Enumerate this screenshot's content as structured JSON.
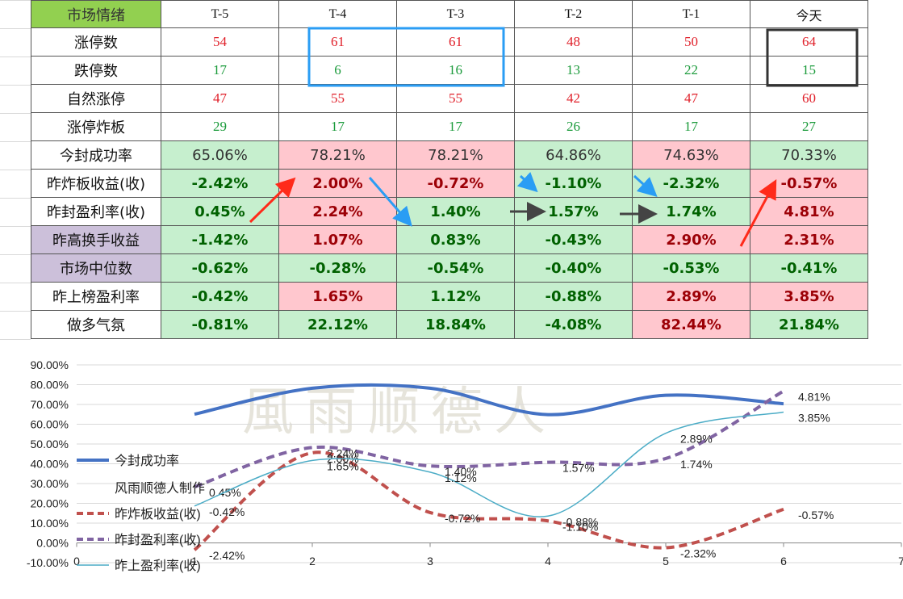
{
  "table": {
    "header": {
      "cells": [
        "市场情绪",
        "T-5",
        "T-4",
        "T-3",
        "T-2",
        "T-1",
        "今天"
      ],
      "label_fill": "#92d050"
    },
    "rows": [
      {
        "cells": [
          "涨停数",
          "54",
          "61",
          "61",
          "48",
          "50",
          "64"
        ],
        "color": "#e0202a"
      },
      {
        "cells": [
          "跌停数",
          "17",
          "6",
          "16",
          "13",
          "22",
          "15"
        ],
        "color": "#1a9a3a"
      },
      {
        "cells": [
          "自然涨停",
          "47",
          "55",
          "55",
          "42",
          "47",
          "60"
        ],
        "color": "#e0202a"
      },
      {
        "cells": [
          "涨停炸板",
          "29",
          "17",
          "17",
          "26",
          "17",
          "27"
        ],
        "color": "#1a9a3a"
      },
      {
        "cells": [
          "今封成功率",
          "65.06%",
          "78.21%",
          "78.21%",
          "64.86%",
          "74.63%",
          "70.33%"
        ],
        "fills": [
          "g",
          "r",
          "r",
          "g",
          "r",
          "g"
        ]
      },
      {
        "cells": [
          "昨炸板收益(收)",
          "-2.42%",
          "2.00%",
          "-0.72%",
          "-1.10%",
          "-2.32%",
          "-0.57%"
        ],
        "fills": [
          "g",
          "r",
          "r",
          "g",
          "g",
          "r"
        ],
        "bold": true
      },
      {
        "cells": [
          "昨封盈利率(收)",
          "0.45%",
          "2.24%",
          "1.40%",
          "1.57%",
          "1.74%",
          "4.81%"
        ],
        "fills": [
          "g",
          "r",
          "g",
          "g",
          "g",
          "r"
        ],
        "bold": true
      },
      {
        "cells": [
          "昨高换手收益",
          "-1.42%",
          "1.07%",
          "0.83%",
          "-0.43%",
          "2.90%",
          "2.31%"
        ],
        "fills": [
          "g",
          "r",
          "g",
          "g",
          "r",
          "r"
        ],
        "bold": true,
        "label_fill": "#ccc0da"
      },
      {
        "cells": [
          "市场中位数",
          "-0.62%",
          "-0.28%",
          "-0.54%",
          "-0.40%",
          "-0.53%",
          "-0.41%"
        ],
        "fills": [
          "g",
          "g",
          "g",
          "g",
          "g",
          "g"
        ],
        "bold": true,
        "label_fill": "#ccc0da"
      },
      {
        "cells": [
          "昨上榜盈利率",
          "-0.42%",
          "1.65%",
          "1.12%",
          "-0.88%",
          "2.89%",
          "3.85%"
        ],
        "fills": [
          "g",
          "r",
          "g",
          "g",
          "r",
          "r"
        ],
        "bold": true
      },
      {
        "cells": [
          "做多气氛",
          "-0.81%",
          "22.12%",
          "18.84%",
          "-4.08%",
          "82.44%",
          "21.84%"
        ],
        "fills": [
          "g",
          "g",
          "g",
          "g",
          "r",
          "g"
        ],
        "bold": true
      }
    ]
  },
  "chart_data": {
    "type": "line",
    "watermark": "風雨顺德人",
    "annotations": [
      "风雨顺德人制作"
    ],
    "x": [
      1,
      2,
      3,
      4,
      5,
      6
    ],
    "xlim": [
      0,
      7
    ],
    "xticks": [
      0,
      1,
      2,
      3,
      4,
      5,
      6,
      7
    ],
    "ylim": [
      -10,
      90
    ],
    "yticks": [
      {
        "value": -10,
        "label": "-10.00%"
      },
      {
        "value": 0,
        "label": "0.00%"
      },
      {
        "value": 10,
        "label": "10.00%"
      },
      {
        "value": 20,
        "label": "20.00%"
      },
      {
        "value": 30,
        "label": "30.00%"
      },
      {
        "value": 40,
        "label": "40.00%"
      },
      {
        "value": 50,
        "label": "50.00%"
      },
      {
        "value": 60,
        "label": "60.00%"
      },
      {
        "value": 70,
        "label": "70.00%"
      },
      {
        "value": 80,
        "label": "80.00%"
      },
      {
        "value": 90,
        "label": "90.00%"
      }
    ],
    "y2lim": [
      -3,
      6
    ],
    "smooth": true,
    "series": [
      {
        "name": "今封成功率",
        "color": "#4472c4",
        "width": 4,
        "values": [
          65.06,
          78.21,
          78.21,
          64.86,
          74.63,
          70.33
        ]
      },
      {
        "name": "昨炸板收益(收)",
        "color": "#c0504d",
        "width": 4,
        "dash": true,
        "axis": "y2",
        "values": [
          -2.42,
          2.0,
          -0.72,
          -1.1,
          -2.32,
          -0.57
        ],
        "value_labels": [
          "-2.42%",
          "2.00%",
          "-0.72%",
          "-1.10%",
          "-2.32%",
          "-0.57%"
        ]
      },
      {
        "name": "昨封盈利率(收)",
        "color": "#8064a2",
        "width": 4,
        "dash": true,
        "axis": "y2",
        "values": [
          0.45,
          2.24,
          1.4,
          1.57,
          1.74,
          4.81
        ],
        "value_labels": [
          "0.45%",
          "2.24%",
          "1.40%",
          "1.57%",
          "1.74%",
          "4.81%"
        ]
      },
      {
        "name": "昨上盈利率(收)",
        "color": "#4bacc6",
        "width": 1.5,
        "axis": "y2",
        "values": [
          -0.42,
          1.65,
          1.12,
          -0.88,
          2.89,
          3.85
        ],
        "value_labels": [
          "-0.42%",
          "1.65%",
          "1.12%",
          "-0.88%",
          "2.89%",
          "3.85%"
        ]
      }
    ]
  }
}
